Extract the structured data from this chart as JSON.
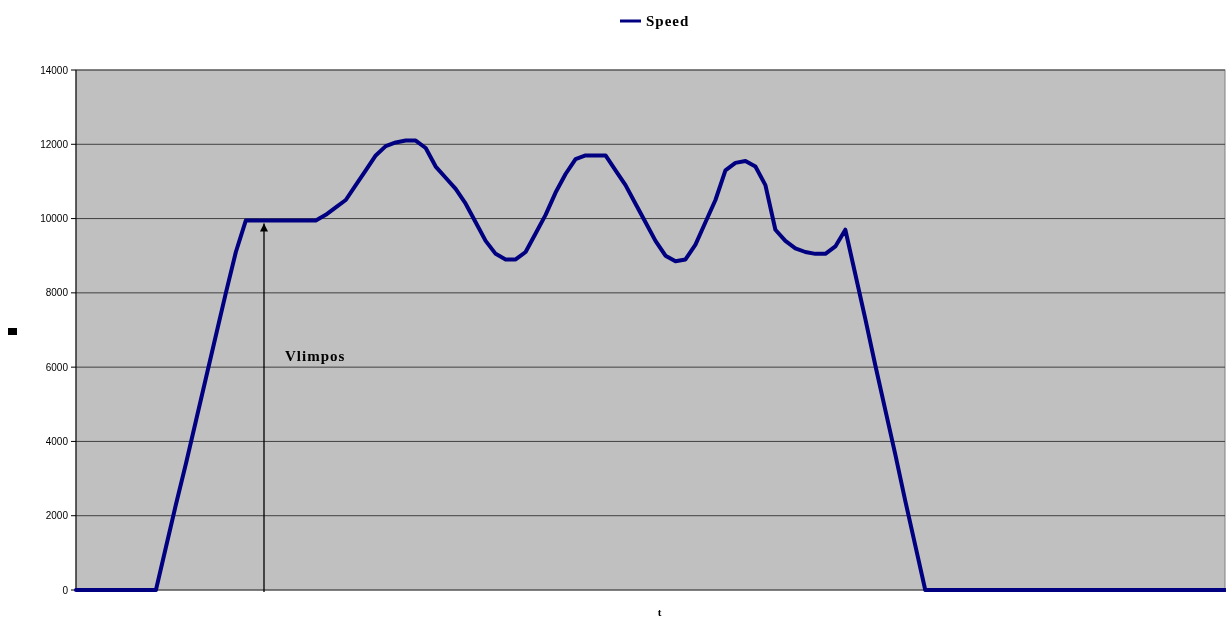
{
  "chart_data": {
    "type": "line",
    "xlabel": "t",
    "categories": [
      null,
      null,
      null,
      null,
      null,
      null,
      null,
      null,
      null,
      null,
      null,
      null,
      null,
      null,
      null,
      null,
      null,
      null,
      null,
      null,
      null,
      null,
      null,
      null,
      null,
      null,
      null,
      null,
      null,
      null,
      null,
      null,
      null,
      null,
      null,
      null,
      null,
      null,
      null,
      null,
      null,
      null,
      null,
      null,
      null,
      null,
      null,
      null,
      null,
      null,
      null,
      null,
      null,
      null,
      null,
      null,
      null,
      null,
      null,
      null,
      null,
      null,
      null,
      null,
      null,
      null,
      null,
      null,
      null,
      null,
      null,
      null,
      null,
      null,
      null,
      null,
      null,
      null,
      null,
      null,
      null,
      null,
      null,
      null,
      null,
      null,
      null,
      null,
      null,
      null,
      null,
      null,
      null,
      null,
      null,
      null,
      null,
      null,
      null,
      null,
      null,
      null,
      null,
      null,
      null,
      null,
      null,
      null,
      null,
      null,
      null,
      null,
      null,
      null,
      null,
      null
    ],
    "series": [
      {
        "name": "Speed",
        "color": "#000080",
        "values": [
          0,
          0,
          0,
          0,
          0,
          0,
          0,
          0,
          0,
          1150,
          2300,
          3400,
          4550,
          5700,
          6850,
          8000,
          9100,
          9950,
          9950,
          9950,
          9950,
          9950,
          9950,
          9950,
          9950,
          10100,
          10300,
          10500,
          10900,
          11300,
          11700,
          11950,
          12050,
          12100,
          12100,
          11900,
          11400,
          11100,
          10800,
          10400,
          9900,
          9400,
          9050,
          8900,
          8900,
          9100,
          9600,
          10100,
          10700,
          11200,
          11600,
          11700,
          11700,
          11700,
          11300,
          10900,
          10400,
          9900,
          9400,
          9000,
          8850,
          8900,
          9300,
          9900,
          10500,
          11300,
          11500,
          11550,
          11400,
          10900,
          9700,
          9400,
          9200,
          9100,
          9050,
          9050,
          9250,
          9700,
          8500,
          7300,
          6050,
          4850,
          3650,
          2400,
          1200,
          0,
          0,
          0,
          0,
          0,
          0,
          0,
          0,
          0,
          0,
          0,
          0,
          0,
          0,
          0,
          0,
          0,
          0,
          0,
          0,
          0,
          0,
          0,
          0,
          0,
          0,
          0,
          0,
          0,
          0,
          0
        ]
      }
    ],
    "ylim": [
      0,
      14000
    ],
    "yticks": [
      0,
      2000,
      4000,
      6000,
      8000,
      10000,
      12000,
      14000
    ],
    "grid": "y",
    "legend": "top",
    "line_style": "solid",
    "marker": "none",
    "annotations": [
      "Vlimpos"
    ]
  }
}
